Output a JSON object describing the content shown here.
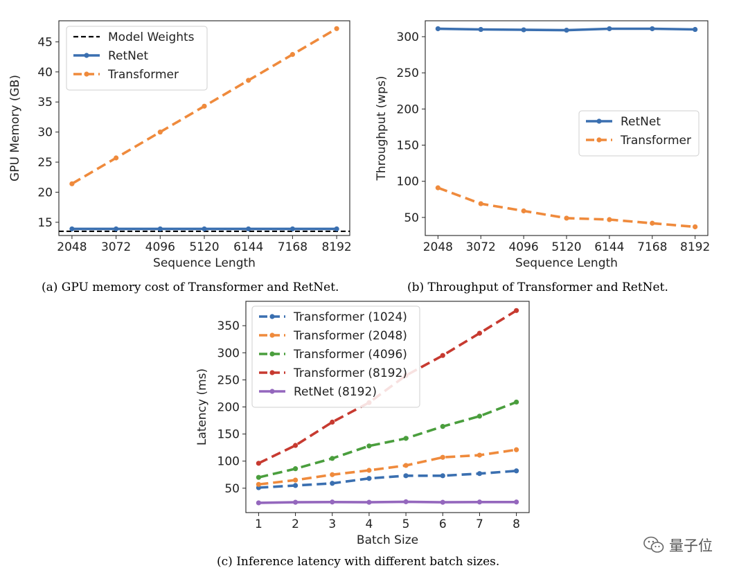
{
  "captions": {
    "a": "(a) GPU memory cost of Transformer and RetNet.",
    "b": "(b) Throughput of Transformer and RetNet.",
    "c": "(c) Inference latency with different batch sizes."
  },
  "watermark": {
    "text": "量子位",
    "icon": "wechat-icon"
  },
  "chart_data": [
    {
      "type": "line",
      "title": "",
      "xlabel": "Sequence Length",
      "ylabel": "GPU Memory (GB)",
      "x": [
        2048,
        3072,
        4096,
        5120,
        6144,
        7168,
        8192
      ],
      "xticks": [
        "2048",
        "3072",
        "4096",
        "5120",
        "6144",
        "7168",
        "8192"
      ],
      "ylim": [
        12.8,
        48.5
      ],
      "yticks": [
        15,
        20,
        25,
        30,
        35,
        40,
        45
      ],
      "legend_position": "top-left",
      "grid": false,
      "hlines": [
        {
          "name": "Model Weights",
          "y": 13.5,
          "color": "#000000",
          "style": "dashed"
        }
      ],
      "series": [
        {
          "name": "RetNet",
          "color": "#3a6fb0",
          "style": "solid",
          "values": [
            13.9,
            13.9,
            13.9,
            13.9,
            13.9,
            13.9,
            13.9
          ]
        },
        {
          "name": "Transformer",
          "color": "#ef8a3c",
          "style": "dashed",
          "values": [
            21.4,
            25.7,
            30.0,
            34.3,
            38.6,
            42.9,
            47.2
          ]
        }
      ]
    },
    {
      "type": "line",
      "title": "",
      "xlabel": "Sequence Length",
      "ylabel": "Throughput (wps)",
      "x": [
        2048,
        3072,
        4096,
        5120,
        6144,
        7168,
        8192
      ],
      "xticks": [
        "2048",
        "3072",
        "4096",
        "5120",
        "6144",
        "7168",
        "8192"
      ],
      "ylim": [
        25,
        322
      ],
      "yticks": [
        50,
        100,
        150,
        200,
        250,
        300
      ],
      "legend_position": "center-right",
      "grid": false,
      "series": [
        {
          "name": "RetNet",
          "color": "#3a6fb0",
          "style": "solid",
          "values": [
            311,
            310,
            309.5,
            309,
            311,
            311,
            310
          ]
        },
        {
          "name": "Transformer",
          "color": "#ef8a3c",
          "style": "dashed",
          "values": [
            91,
            69,
            59,
            49,
            47,
            42,
            37
          ]
        }
      ]
    },
    {
      "type": "line",
      "title": "",
      "xlabel": "Batch Size",
      "ylabel": "Latency (ms)",
      "x": [
        1,
        2,
        3,
        4,
        5,
        6,
        7,
        8
      ],
      "xticks": [
        "1",
        "2",
        "3",
        "4",
        "5",
        "6",
        "7",
        "8"
      ],
      "ylim": [
        5,
        395
      ],
      "yticks": [
        50,
        100,
        150,
        200,
        250,
        300,
        350
      ],
      "legend_position": "top-left",
      "grid": false,
      "series": [
        {
          "name": "Transformer (1024)",
          "color": "#3a6fb0",
          "style": "dashed",
          "values": [
            51,
            55,
            59,
            68,
            73,
            73,
            77,
            82
          ]
        },
        {
          "name": "Transformer (2048)",
          "color": "#ef8a3c",
          "style": "dashed",
          "values": [
            57,
            65,
            75,
            83,
            92,
            107,
            111,
            121
          ]
        },
        {
          "name": "Transformer (4096)",
          "color": "#4a9e3d",
          "style": "dashed",
          "values": [
            70,
            86,
            105,
            128,
            142,
            164,
            183,
            209
          ]
        },
        {
          "name": "Transformer (8192)",
          "color": "#c73a30",
          "style": "dashed",
          "values": [
            96,
            129,
            172,
            208,
            258,
            295,
            336,
            378
          ]
        },
        {
          "name": "RetNet (8192)",
          "color": "#9467bd",
          "style": "solid",
          "values": [
            23,
            24,
            24.5,
            24,
            25,
            24,
            24.5,
            24.5
          ]
        }
      ]
    }
  ]
}
